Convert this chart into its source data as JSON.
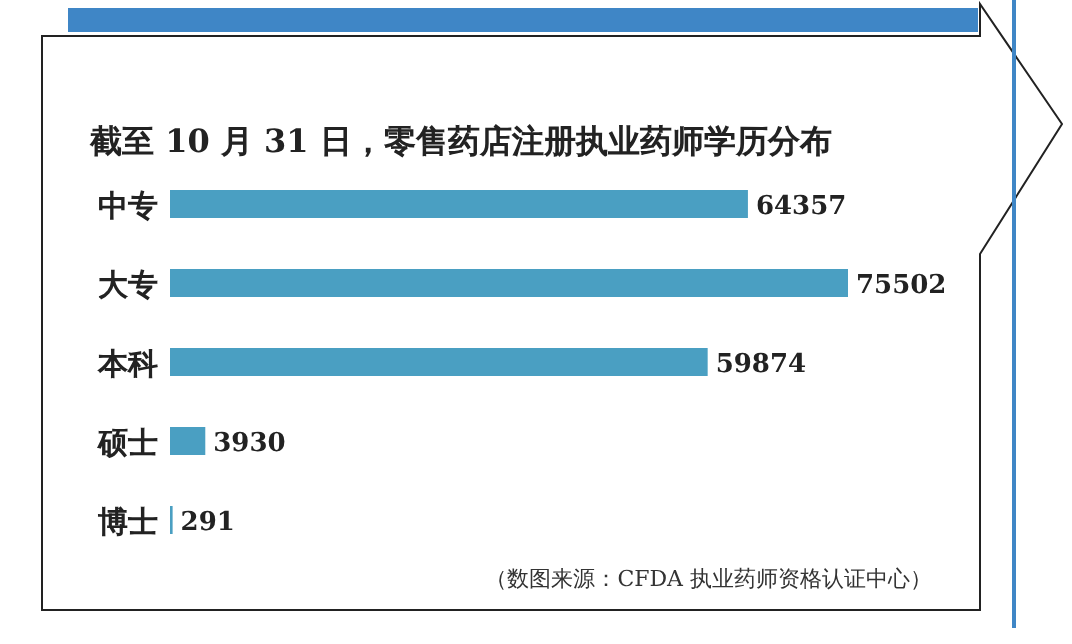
{
  "chart_data": {
    "type": "bar",
    "orientation": "horizontal",
    "title": "截至 10 月 31 日，零售药店注册执业药师学历分布",
    "categories": [
      "中专",
      "大专",
      "本科",
      "硕士",
      "博士"
    ],
    "values": [
      64357,
      75502,
      59874,
      3930,
      291
    ],
    "color": "#4a9fc2",
    "data_labels": true,
    "annotations": [
      "（数图来源：CFDA 执业药师资格认证中心）"
    ]
  }
}
